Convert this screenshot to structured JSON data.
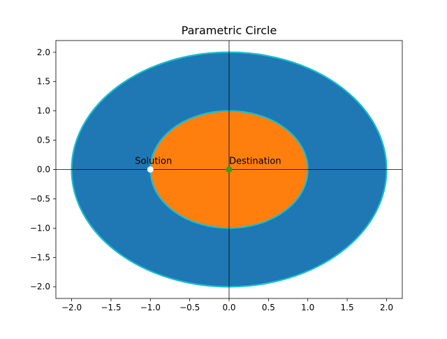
{
  "chart_data": {
    "type": "scatter",
    "title": "Parametric Circle",
    "xlabel": "",
    "ylabel": "",
    "xlim": [
      -2.2,
      2.2
    ],
    "ylim": [
      -2.2,
      2.2
    ],
    "xticks": [
      -2.0,
      -1.5,
      -1.0,
      -0.5,
      0.0,
      0.5,
      1.0,
      1.5,
      2.0
    ],
    "yticks": [
      -2.0,
      -1.5,
      -1.0,
      -0.5,
      0.0,
      0.5,
      1.0,
      1.5,
      2.0
    ],
    "xtick_labels": [
      "−2.0",
      "−1.5",
      "−1.0",
      "−0.5",
      "0.0",
      "0.5",
      "1.0",
      "1.5",
      "2.0"
    ],
    "ytick_labels": [
      "−2.0",
      "−1.5",
      "−1.0",
      "−0.5",
      "0.0",
      "0.5",
      "1.0",
      "1.5",
      "2.0"
    ],
    "grid": false,
    "axis_lines": {
      "x0": 0,
      "y0": 0,
      "color": "#000000"
    },
    "regions": [
      {
        "shape": "circle",
        "cx": 0,
        "cy": 0,
        "r": 2,
        "fill": "#1f77b4",
        "edge": "#17becf"
      },
      {
        "shape": "circle",
        "cx": 0,
        "cy": 0,
        "r": 1,
        "fill": "#ff7f0e",
        "edge": "#17becf"
      }
    ],
    "points": [
      {
        "label": "Solution",
        "x": -1,
        "y": 0,
        "color": "#ffffff"
      },
      {
        "label": "Destination",
        "x": 0,
        "y": 0,
        "color": "#2ca02c"
      }
    ]
  }
}
